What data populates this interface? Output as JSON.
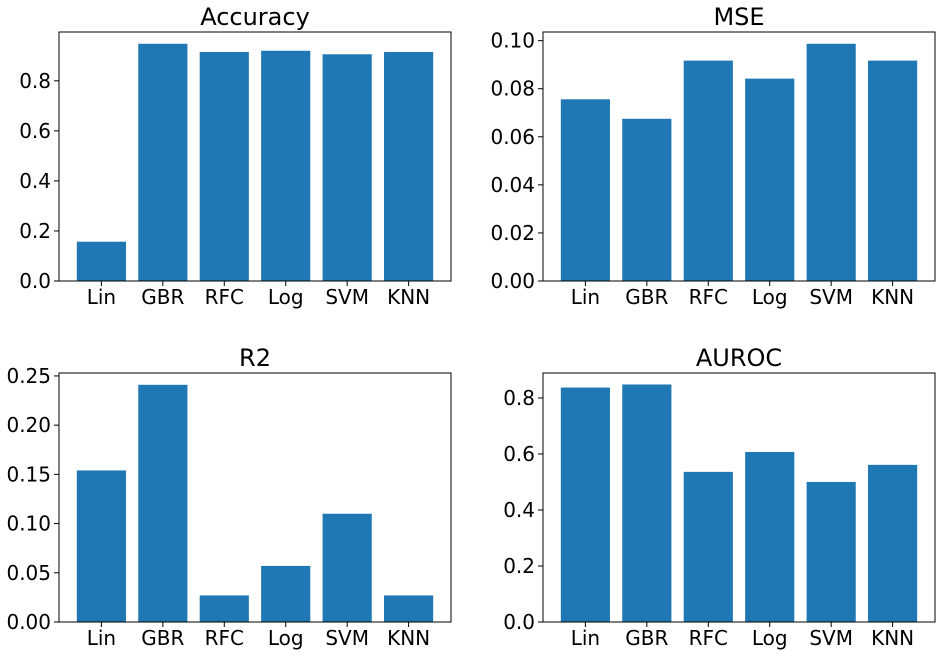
{
  "colors": {
    "bar": "#1f77b4",
    "axis": "#000000",
    "background": "#ffffff"
  },
  "chart_data": [
    {
      "type": "bar",
      "title": "Accuracy",
      "xlabel": "",
      "ylabel": "",
      "categories": [
        "Lin",
        "GBR",
        "RFC",
        "Log",
        "SVM",
        "KNN"
      ],
      "values": [
        0.157,
        0.948,
        0.915,
        0.92,
        0.906,
        0.915
      ],
      "ylim": [
        0,
        0.995
      ],
      "yticks": [
        0.0,
        0.2,
        0.4,
        0.6,
        0.8
      ],
      "ytick_labels": [
        "0.0",
        "0.2",
        "0.4",
        "0.6",
        "0.8"
      ],
      "grid": false
    },
    {
      "type": "bar",
      "title": "MSE",
      "xlabel": "",
      "ylabel": "",
      "categories": [
        "Lin",
        "GBR",
        "RFC",
        "Log",
        "SVM",
        "KNN"
      ],
      "values": [
        0.0756,
        0.0675,
        0.0917,
        0.0842,
        0.0987,
        0.0917
      ],
      "ylim": [
        0,
        0.1036
      ],
      "yticks": [
        0.0,
        0.02,
        0.04,
        0.06,
        0.08,
        0.1
      ],
      "ytick_labels": [
        "0.00",
        "0.02",
        "0.04",
        "0.06",
        "0.08",
        "0.10"
      ],
      "grid": false
    },
    {
      "type": "bar",
      "title": "R2",
      "xlabel": "",
      "ylabel": "",
      "categories": [
        "Lin",
        "GBR",
        "RFC",
        "Log",
        "SVM",
        "KNN"
      ],
      "values": [
        0.154,
        0.241,
        0.027,
        0.057,
        0.11,
        0.027
      ],
      "ylim": [
        0,
        0.253
      ],
      "yticks": [
        0.0,
        0.05,
        0.1,
        0.15,
        0.2,
        0.25
      ],
      "ytick_labels": [
        "0.00",
        "0.05",
        "0.10",
        "0.15",
        "0.20",
        "0.25"
      ],
      "grid": false
    },
    {
      "type": "bar",
      "title": "AUROC",
      "xlabel": "",
      "ylabel": "",
      "categories": [
        "Lin",
        "GBR",
        "RFC",
        "Log",
        "SVM",
        "KNN"
      ],
      "values": [
        0.837,
        0.848,
        0.536,
        0.607,
        0.5,
        0.561
      ],
      "ylim": [
        0,
        0.889
      ],
      "yticks": [
        0.0,
        0.2,
        0.4,
        0.6,
        0.8
      ],
      "ytick_labels": [
        "0.0",
        "0.2",
        "0.4",
        "0.6",
        "0.8"
      ],
      "grid": false
    }
  ]
}
